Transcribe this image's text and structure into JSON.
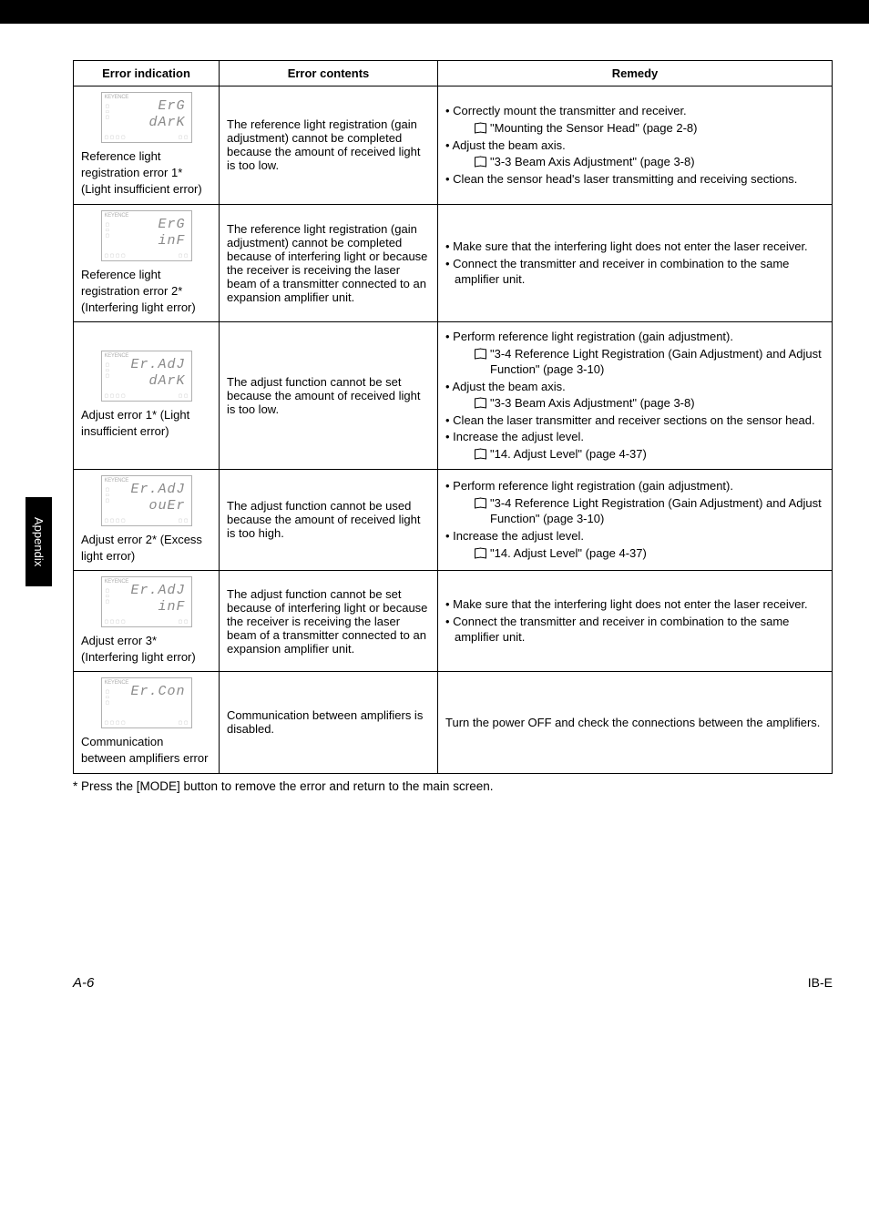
{
  "sideTab": "Appendix",
  "headers": {
    "c1": "Error indication",
    "c2": "Error contents",
    "c3": "Remedy"
  },
  "rows": [
    {
      "seg1": "ErG",
      "seg2": "dArK",
      "indLabel": "Reference light registration error 1* (Light insufficient error)",
      "contents": "The reference light registration (gain adjustment) cannot be completed because the amount of received light is too low.",
      "remedy": [
        {
          "t": "bullet",
          "text": "Correctly mount the transmitter and receiver."
        },
        {
          "t": "book",
          "text": "\"Mounting the Sensor Head\" (page 2-8)"
        },
        {
          "t": "bullet",
          "text": "Adjust the beam axis."
        },
        {
          "t": "book",
          "text": "\"3-3 Beam Axis Adjustment\" (page 3-8)"
        },
        {
          "t": "bullet",
          "text": "Clean the sensor head's laser transmitting and receiving sections."
        }
      ]
    },
    {
      "seg1": "ErG",
      "seg2": "inF",
      "indLabel": "Reference light registration error 2* (Interfering light error)",
      "contents": "The reference light registration (gain adjustment) cannot be completed because of interfering light or because the receiver is receiving the laser beam of a transmitter connected to an expansion amplifier unit.",
      "remedy": [
        {
          "t": "bullet",
          "text": "Make sure that the interfering light does not enter the laser receiver."
        },
        {
          "t": "bullet",
          "text": "Connect the transmitter and receiver in combination to the same amplifier unit."
        }
      ]
    },
    {
      "seg1": "Er.AdJ",
      "seg2": "dArK",
      "indLabel": "Adjust error 1* (Light insufficient error)",
      "contents": "The adjust function cannot be set because the amount of received light is too low.",
      "remedy": [
        {
          "t": "bullet",
          "text": "Perform reference light registration (gain adjustment)."
        },
        {
          "t": "book",
          "text": "\"3-4 Reference Light Registration (Gain Adjustment) and Adjust Function\" (page 3-10)"
        },
        {
          "t": "bullet",
          "text": "Adjust the beam axis."
        },
        {
          "t": "book",
          "text": "\"3-3 Beam Axis Adjustment\" (page 3-8)"
        },
        {
          "t": "bullet",
          "text": "Clean the laser transmitter and receiver sections on the sensor head."
        },
        {
          "t": "bullet",
          "text": "Increase the adjust level."
        },
        {
          "t": "book",
          "text": "\"14. Adjust Level\" (page 4-37)"
        }
      ]
    },
    {
      "seg1": "Er.AdJ",
      "seg2": "ouEr",
      "indLabel": "Adjust error 2* (Excess light error)",
      "contents": "The adjust function cannot be used because the amount of received light is too high.",
      "remedy": [
        {
          "t": "bullet",
          "text": "Perform reference light registration (gain adjustment)."
        },
        {
          "t": "book",
          "text": "\"3-4 Reference Light Registration (Gain Adjustment) and Adjust Function\" (page 3-10)"
        },
        {
          "t": "bullet",
          "text": "Increase the adjust level."
        },
        {
          "t": "book",
          "text": "\"14. Adjust Level\" (page 4-37)"
        }
      ]
    },
    {
      "seg1": "Er.AdJ",
      "seg2": "inF",
      "indLabel": "Adjust error 3* (Interfering light error)",
      "contents": "The adjust function cannot be set because of interfering light or because the receiver is receiving the laser beam of a transmitter connected to an expansion amplifier unit.",
      "remedy": [
        {
          "t": "bullet",
          "text": "Make sure that the interfering light does not enter the laser receiver."
        },
        {
          "t": "bullet",
          "text": "Connect the transmitter and receiver in combination to the same amplifier unit."
        }
      ]
    },
    {
      "seg1": "Er.Con",
      "seg2": "",
      "indLabel": "Communication between amplifiers error",
      "contents": "Communication between amplifiers is disabled.",
      "remedy": [
        {
          "t": "plain",
          "text": "Turn the power OFF and check the connections between the amplifiers."
        }
      ]
    }
  ],
  "footnote": "*  Press the [MODE] button to remove the error and return to the main screen.",
  "pageLeft": "A-6",
  "pageRight": "IB-E",
  "indBox": {
    "brand": "KEYENCE",
    "marks": "▢\n▭\n▢",
    "bl": "▢ ▢ ▢ ▢",
    "br": "▢ ▢"
  }
}
